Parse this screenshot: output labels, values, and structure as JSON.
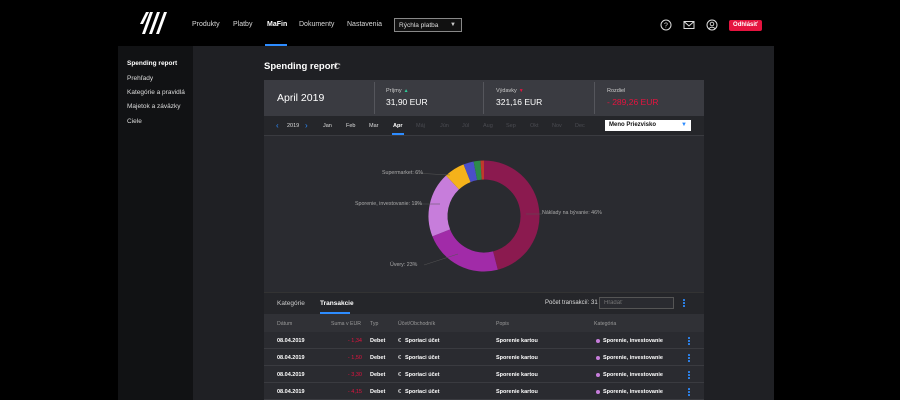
{
  "nav": {
    "items": [
      "Produkty",
      "Platby",
      "MaFin",
      "Dokumenty",
      "Nastavenia"
    ],
    "active": "MaFin",
    "quick_select": "Rýchla platba",
    "logout": "Odhlásiť"
  },
  "sidebar": {
    "items": [
      "Spending report",
      "Prehľady",
      "Kategórie a pravidlá",
      "Majetok a záväzky",
      "Ciele"
    ],
    "active": "Spending report"
  },
  "page": {
    "title": "Spending report"
  },
  "summary": {
    "month": "April 2019",
    "income_label": "Príjmy",
    "income_value": "31,90 EUR",
    "expense_label": "Výdavky",
    "expense_value": "321,16 EUR",
    "diff_label": "Rozdiel",
    "diff_value": "- 289,26 EUR"
  },
  "month_bar": {
    "year": "2019",
    "months": [
      "Jan",
      "Feb",
      "Mar",
      "Apr",
      "Máj",
      "Jún",
      "Júl",
      "Aug",
      "Sep",
      "Okt",
      "Nov",
      "Dec"
    ],
    "active": "Apr",
    "select_value": "Meno Priezvisko"
  },
  "chart_data": {
    "type": "pie",
    "donut": true,
    "slices": [
      {
        "label": "Náklady na bývanie: 46%",
        "value": 46,
        "color": "#8b1a4f"
      },
      {
        "label": "Úvery: 23%",
        "value": 23,
        "color": "#a12ba8"
      },
      {
        "label": "Sporenie, investovanie: 19%",
        "value": 19,
        "color": "#c77ddb"
      },
      {
        "label": "Supermarket: 6%",
        "value": 6,
        "color": "#f5b21a"
      },
      {
        "label": "",
        "value": 3,
        "color": "#4b4fc8"
      },
      {
        "label": "",
        "value": 2,
        "color": "#2d8b4a"
      },
      {
        "label": "",
        "value": 1,
        "color": "#c0392b"
      }
    ]
  },
  "tabs": {
    "items": [
      "Kategórie",
      "Transakcie"
    ],
    "active": "Transakcie"
  },
  "transactions": {
    "count_label": "Počet transakcií: 31",
    "search_placeholder": "Hľadať",
    "columns": [
      "Dátum",
      "Suma v EUR",
      "Typ",
      "Účet/Obchodník",
      "Popis",
      "Kategória"
    ],
    "rows": [
      {
        "date": "08.04.2019",
        "amount": "- 1,34",
        "type": "Debet",
        "account": "Sporiaci účet",
        "desc": "Sporenie kartou",
        "category": "Sporenie, investovanie"
      },
      {
        "date": "08.04.2019",
        "amount": "- 1,50",
        "type": "Debet",
        "account": "Sporiaci účet",
        "desc": "Sporenie kartou",
        "category": "Sporenie, investovanie"
      },
      {
        "date": "08.04.2019",
        "amount": "- 3,30",
        "type": "Debet",
        "account": "Sporiaci účet",
        "desc": "Sporenie kartou",
        "category": "Sporenie, investovanie"
      },
      {
        "date": "08.04.2019",
        "amount": "- 4,15",
        "type": "Debet",
        "account": "Sporiaci účet",
        "desc": "Sporenie kartou",
        "category": "Sporenie, investovanie"
      }
    ]
  }
}
